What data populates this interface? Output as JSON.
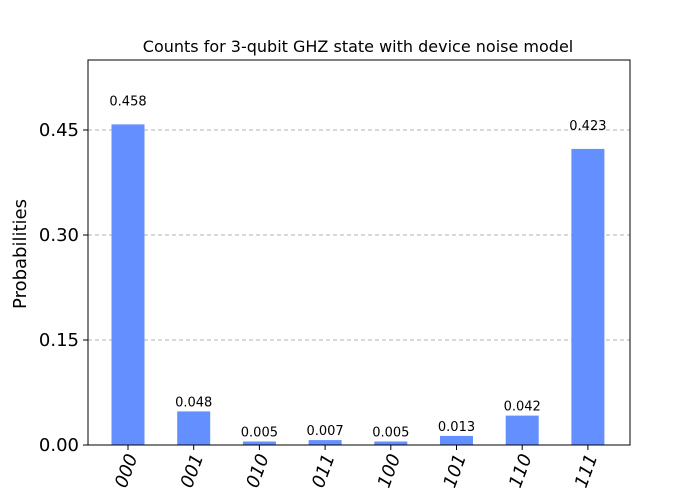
{
  "chart_data": {
    "type": "bar",
    "title": "Counts for 3-qubit GHZ state with device noise model",
    "xlabel": "",
    "ylabel": "Probabilities",
    "categories": [
      "000",
      "001",
      "010",
      "011",
      "100",
      "101",
      "110",
      "111"
    ],
    "values": [
      0.458,
      0.048,
      0.005,
      0.007,
      0.005,
      0.013,
      0.042,
      0.423
    ],
    "value_labels": [
      "0.458",
      "0.048",
      "0.005",
      "0.007",
      "0.005",
      "0.013",
      "0.042",
      "0.423"
    ],
    "ylim": [
      0,
      0.55
    ],
    "yticks": [
      0.0,
      0.15,
      0.3,
      0.45
    ],
    "ytick_labels": [
      "0.00",
      "0.15",
      "0.30",
      "0.45"
    ],
    "grid": "horizontal-dashed",
    "bar_color": "#648fff"
  }
}
